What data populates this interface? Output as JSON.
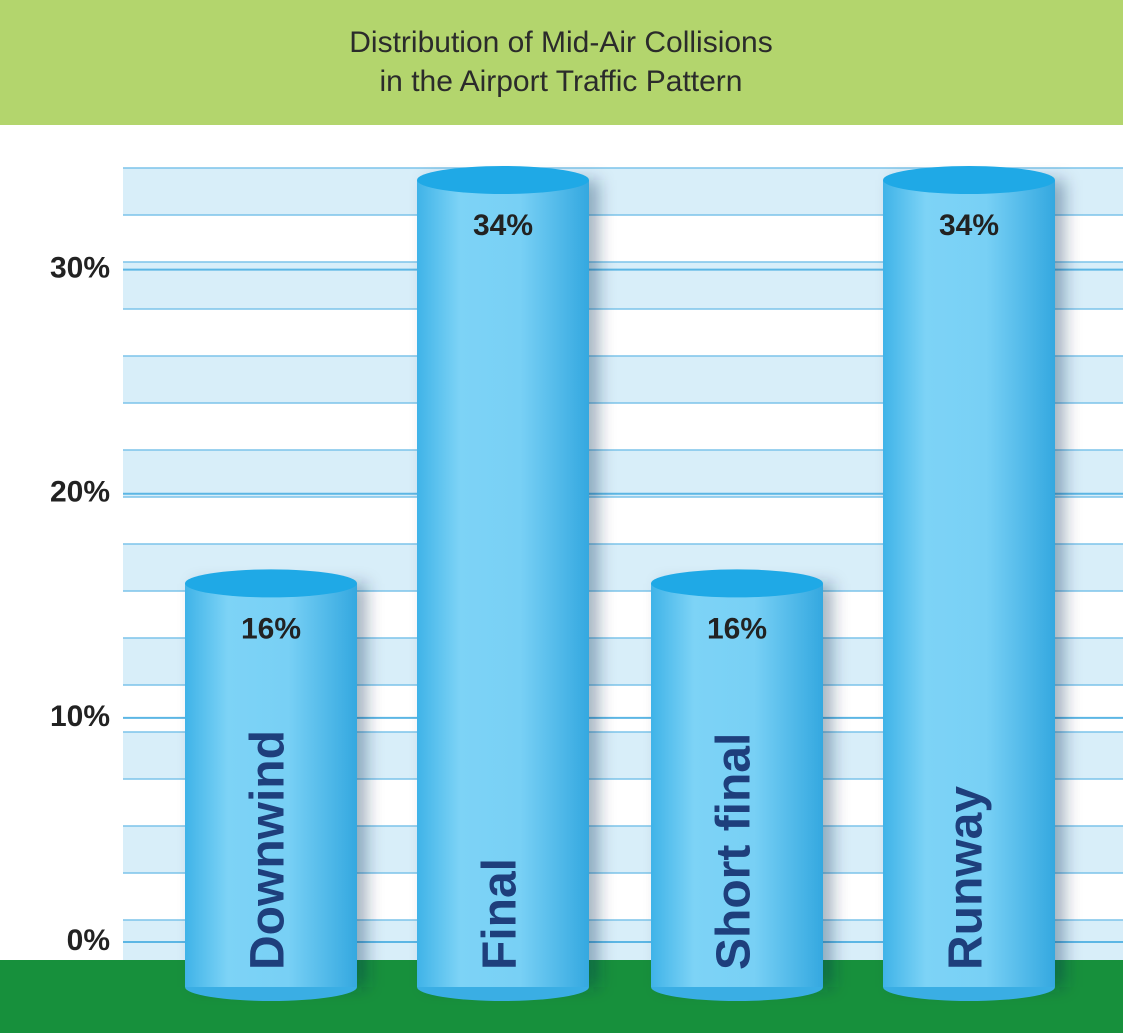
{
  "chart_data": {
    "type": "bar",
    "title": "Distribution of Mid-Air Collisions",
    "subtitle": "in the Airport Traffic Pattern",
    "categories": [
      "Downwind",
      "Final",
      "Short final",
      "Runway"
    ],
    "values": [
      16,
      34,
      16,
      34
    ],
    "value_labels": [
      "16%",
      "34%",
      "16%",
      "34%"
    ],
    "color": "#6ccff3",
    "ylim": [
      0,
      34
    ],
    "yticks": [
      {
        "value": 0,
        "label": "0%"
      },
      {
        "value": 10,
        "label": "10%"
      },
      {
        "value": 20,
        "label": "20%"
      },
      {
        "value": 30,
        "label": "30%"
      }
    ],
    "grid": true
  }
}
